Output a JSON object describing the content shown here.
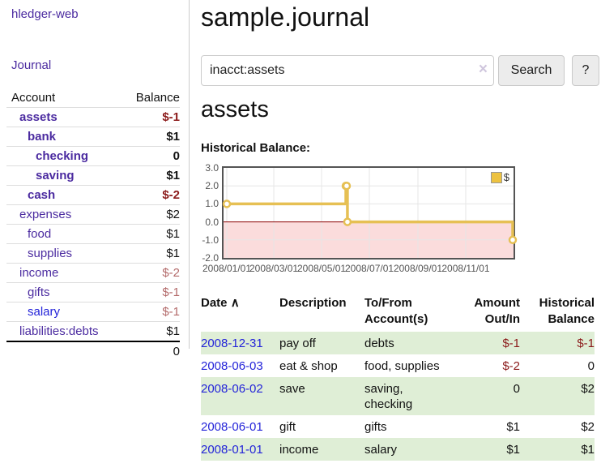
{
  "app": {
    "name": "hledger-web"
  },
  "sidebar": {
    "journal_link_label": "Journal",
    "accounts_header": {
      "account": "Account",
      "balance": "Balance"
    },
    "accounts": [
      {
        "name": "assets",
        "balance": "$-1",
        "level": 1,
        "active": true
      },
      {
        "name": "bank",
        "balance": "$1",
        "level": 2,
        "active": true
      },
      {
        "name": "checking",
        "balance": "0",
        "level": 3,
        "active": true
      },
      {
        "name": "saving",
        "balance": "$1",
        "level": 3,
        "active": true
      },
      {
        "name": "cash",
        "balance": "$-2",
        "level": 2,
        "active": true
      },
      {
        "name": "expenses",
        "balance": "$2",
        "level": 1,
        "active": false
      },
      {
        "name": "food",
        "balance": "$1",
        "level": 2,
        "active": false
      },
      {
        "name": "supplies",
        "balance": "$1",
        "level": 2,
        "active": false
      },
      {
        "name": "income",
        "balance": "$-2",
        "level": 1,
        "active": false
      },
      {
        "name": "gifts",
        "balance": "$-1",
        "level": 2,
        "active": false
      },
      {
        "name": "salary",
        "balance": "$-1",
        "level": 2,
        "active": false,
        "link_style": "blue"
      },
      {
        "name": "liabilities:debts",
        "balance": "$1",
        "level": 1,
        "active": false
      }
    ],
    "total_balance": "0"
  },
  "main": {
    "title": "sample.journal",
    "search": {
      "value": "inacct:assets",
      "clear_icon": "×",
      "search_button": "Search",
      "help_button": "?"
    },
    "account_heading": "assets",
    "chart_heading": "Historical Balance:"
  },
  "chart_data": {
    "type": "line",
    "style": "step",
    "title": "Historical Balance:",
    "series": [
      {
        "name": "$",
        "points": [
          {
            "date": "2008-01-01",
            "day": 0,
            "value": 1
          },
          {
            "date": "2008-06-01",
            "day": 152,
            "value": 2
          },
          {
            "date": "2008-06-02",
            "day": 153,
            "value": 2
          },
          {
            "date": "2008-06-03",
            "day": 154,
            "value": 0
          },
          {
            "date": "2008-12-31",
            "day": 365,
            "value": -1
          }
        ]
      }
    ],
    "ylim": [
      -2,
      3
    ],
    "xmax": 365,
    "y_ticks": [
      {
        "v": 3,
        "label": "3.0"
      },
      {
        "v": 2,
        "label": "2.0"
      },
      {
        "v": 1,
        "label": "1.0"
      },
      {
        "v": 0,
        "label": "0.0"
      },
      {
        "v": -1,
        "label": "-1.0"
      },
      {
        "v": -2,
        "label": "-2.0"
      }
    ],
    "x_ticks": [
      {
        "day": 0,
        "label": "2008/01/01"
      },
      {
        "day": 60,
        "label": "2008/03/01"
      },
      {
        "day": 121,
        "label": "2008/05/01"
      },
      {
        "day": 182,
        "label": "2008/07/01"
      },
      {
        "day": 244,
        "label": "2008/09/01"
      },
      {
        "day": 305,
        "label": "2008/11/01"
      }
    ],
    "legend_position": "top-right",
    "grid": true,
    "colors": {
      "line": "#e6c054",
      "negative_fill": "#fbdcdc",
      "zero_line": "#8b0000",
      "grid": "#e6e6e6",
      "border": "#545454"
    }
  },
  "register": {
    "headers": [
      "Date",
      "Description",
      "To/From Account(s)",
      "Amount Out/In",
      "Historical Balance"
    ],
    "sort_icon": "∧",
    "rows": [
      {
        "date": "2008-12-31",
        "description": "pay off",
        "accounts": "debts",
        "amount": "$-1",
        "balance": "$-1"
      },
      {
        "date": "2008-06-03",
        "description": "eat & shop",
        "accounts": "food, supplies",
        "amount": "$-2",
        "balance": "0"
      },
      {
        "date": "2008-06-02",
        "description": "save",
        "accounts": "saving, checking",
        "amount": "0",
        "balance": "$2"
      },
      {
        "date": "2008-06-01",
        "description": "gift",
        "accounts": "gifts",
        "amount": "$1",
        "balance": "$2"
      },
      {
        "date": "2008-01-01",
        "description": "income",
        "accounts": "salary",
        "amount": "$1",
        "balance": "$1"
      }
    ]
  },
  "colors": {
    "link_purple": "#4b2ba0",
    "link_blue": "#2424d9",
    "negative_strong": "#8b1a1a",
    "negative_muted": "#b36a6a",
    "row_green": "#dfeed6",
    "button_bg": "#ececec"
  }
}
